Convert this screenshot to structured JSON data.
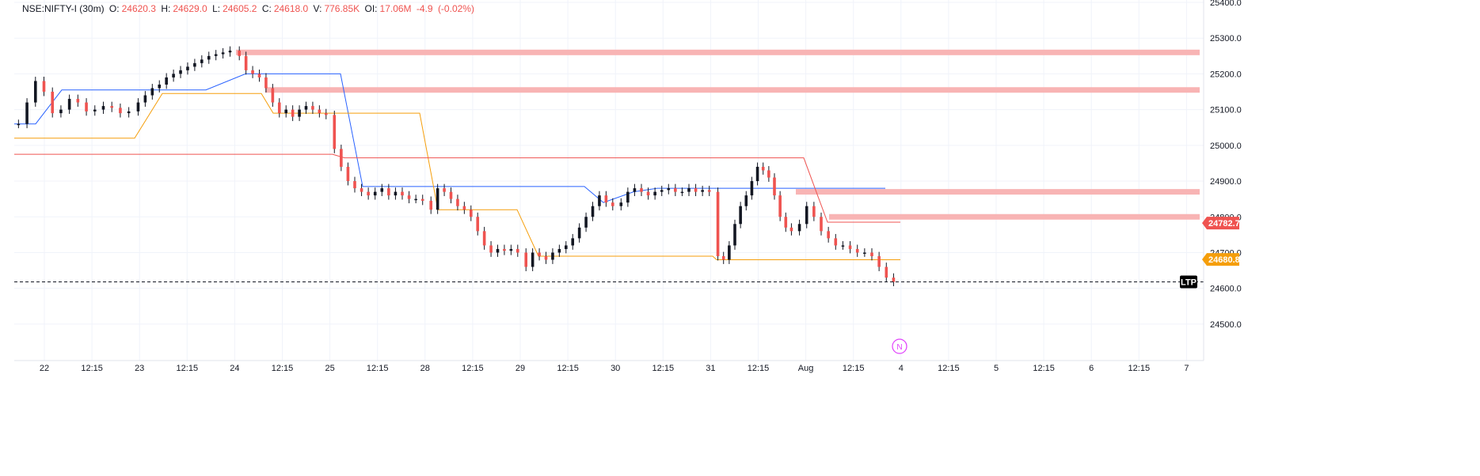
{
  "header": {
    "symbol": "NSE:NIFTY-I (30m)",
    "o_label": "O:",
    "o_value": "24620.3",
    "h_label": "H:",
    "h_value": "24629.0",
    "l_label": "L:",
    "l_value": "24605.2",
    "c_label": "C:",
    "c_value": "24618.0",
    "v_label": "V:",
    "v_value": "776.85K",
    "oi_label": "OI:",
    "oi_value": "17.06M",
    "change": "-4.9",
    "change_pct": "(-0.02%)"
  },
  "colors": {
    "bull": "#26a69a",
    "bear": "#ef5350",
    "candle_body": "#131722",
    "blue_line": "#2962ff",
    "orange_line": "#f59e0b",
    "red_line": "#ef5350",
    "zone": "#f8b4b4",
    "tag_red": "#ef5350",
    "tag_orange": "#f59e0b",
    "ltp_bg": "#000000",
    "news": "#e040fb",
    "grid": "#f0f3fa"
  },
  "chart_data": {
    "type": "candlestick",
    "timeframe": "30m",
    "y_ticks": [
      "25400.0",
      "25300.0",
      "25200.0",
      "25100.0",
      "25000.0",
      "24900.0",
      "24800.0",
      "24700.0",
      "24600.0",
      "24500.0"
    ],
    "ylim": [
      24440,
      25400
    ],
    "x_ticks": [
      "22",
      "12:15",
      "23",
      "12:15",
      "24",
      "12:15",
      "25",
      "12:15",
      "28",
      "12:15",
      "29",
      "12:15",
      "30",
      "12:15",
      "31",
      "12:15",
      "Aug",
      "12:15",
      "4",
      "12:15",
      "5",
      "12:15",
      "6",
      "12:15",
      "7"
    ],
    "sessions": [
      {
        "day": "22",
        "prices": [
          25060,
          25120,
          25180,
          25150,
          25090,
          25100,
          25130,
          25120,
          25095,
          25100,
          25110,
          25105,
          25090,
          25095
        ]
      },
      {
        "day": "23",
        "prices": [
          25120,
          25140,
          25160,
          25170,
          25190,
          25200,
          25210,
          25220,
          25230,
          25240,
          25250,
          25255,
          25260,
          25265
        ]
      },
      {
        "day": "24",
        "prices": [
          25250,
          25210,
          25200,
          25190,
          25160,
          25120,
          25090,
          25100,
          25080,
          25100,
          25110,
          25100,
          25090,
          25085
        ]
      },
      {
        "day": "25",
        "prices": [
          24990,
          24940,
          24900,
          24880,
          24870,
          24860,
          24870,
          24880,
          24860,
          24870,
          24860,
          24850,
          24850,
          24845
        ]
      },
      {
        "day": "28",
        "prices": [
          24820,
          24880,
          24870,
          24850,
          24830,
          24820,
          24800,
          24760,
          24720,
          24700,
          24710,
          24705,
          24710,
          24700
        ]
      },
      {
        "day": "29",
        "prices": [
          24660,
          24700,
          24690,
          24680,
          24700,
          24710,
          24720,
          24740,
          24770,
          24800,
          24830,
          24860,
          24840,
          24830
        ]
      },
      {
        "day": "30",
        "prices": [
          24840,
          24870,
          24880,
          24870,
          24860,
          24870,
          24875,
          24880,
          24870,
          24870,
          24880,
          24870,
          24875,
          24870
        ]
      },
      {
        "day": "31",
        "prices": [
          24690,
          24680,
          24720,
          24780,
          24830,
          24860,
          24900,
          24940,
          24930,
          24910,
          24860,
          24800,
          24770,
          24760
        ]
      },
      {
        "day": "Aug",
        "prices": [
          24780,
          24830,
          24800,
          24760,
          24740,
          24720,
          24720,
          24710,
          24700,
          24700,
          24690,
          24660,
          24630,
          24618
        ]
      }
    ],
    "resistance_zones": [
      25260,
      25155,
      24870,
      24800
    ],
    "tags": [
      {
        "label": "24782.7",
        "value": 24782.7,
        "color": "red"
      },
      {
        "label": "24680.8",
        "value": 24680.8,
        "color": "orange"
      },
      {
        "label": "LTP",
        "value": 24618.0,
        "color": "black"
      }
    ],
    "news_marker": "N"
  }
}
